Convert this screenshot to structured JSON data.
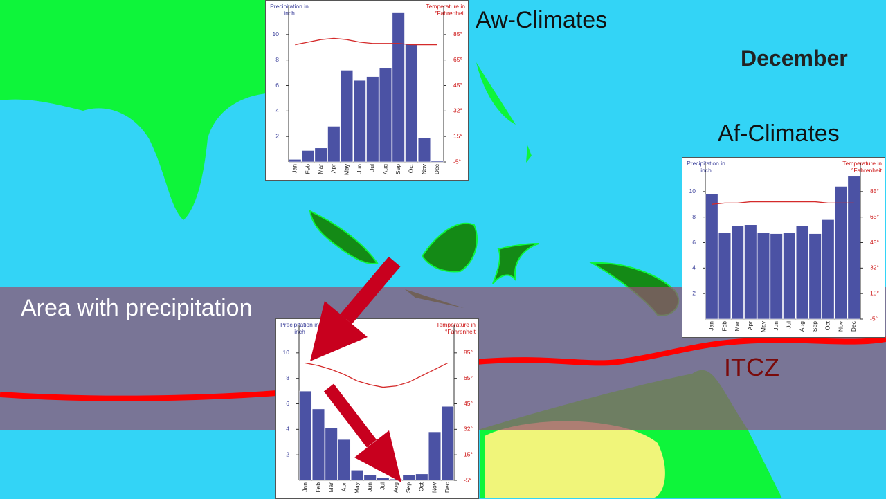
{
  "labels": {
    "aw": "Aw-Climates",
    "month": "December",
    "af": "Af-Climates",
    "band": "Area with precipitation",
    "itcz": "ITCZ"
  },
  "chart_data": [
    {
      "type": "bar",
      "y_label": "Precipitation in inch",
      "y2_label": "Temperature in °Fahrenheit",
      "categories": [
        "Jan",
        "Feb",
        "Mar",
        "Apr",
        "May",
        "Jun",
        "Jul",
        "Aug",
        "Sep",
        "Oct",
        "Nov",
        "Dec"
      ],
      "series": [
        {
          "color": "#4b52a4",
          "values": [
            0.2,
            0.9,
            1.1,
            2.8,
            7.2,
            6.4,
            6.7,
            7.4,
            11.7,
            9.3,
            1.9,
            0.1
          ]
        },
        {
          "color": "#d42a2a",
          "axis": "y2",
          "type": "line",
          "values": [
            77,
            79,
            81,
            82,
            81,
            79,
            78,
            78,
            78,
            77,
            77,
            77
          ]
        }
      ],
      "ylim": [
        0,
        12
      ],
      "yticks": [
        2,
        4,
        6,
        8,
        10
      ],
      "y2ticks": [
        {
          "value": -5,
          "label": "-5°"
        },
        {
          "value": 15,
          "label": "15°"
        },
        {
          "value": 32,
          "label": "32°"
        },
        {
          "value": 45,
          "label": "45°"
        },
        {
          "value": 65,
          "label": "65°"
        },
        {
          "value": 85,
          "label": "85°"
        }
      ]
    },
    {
      "type": "bar",
      "y_label": "Precipitation in inch",
      "y2_label": "Temperature in °Fahrenheit",
      "categories": [
        "Jan",
        "Feb",
        "Mar",
        "Apr",
        "May",
        "Jun",
        "Jul",
        "Aug",
        "Sep",
        "Oct",
        "Nov",
        "Dec"
      ],
      "series": [
        {
          "color": "#4b52a4",
          "values": [
            9.8,
            6.8,
            7.3,
            7.4,
            6.8,
            6.7,
            6.8,
            7.3,
            6.7,
            7.8,
            10.4,
            11.2
          ]
        },
        {
          "color": "#d42a2a",
          "axis": "y2",
          "type": "line",
          "values": [
            75,
            76,
            76,
            77,
            77,
            77,
            77,
            77,
            77,
            76,
            76,
            76
          ]
        }
      ],
      "ylim": [
        0,
        12
      ],
      "yticks": [
        2,
        4,
        6,
        8,
        10
      ],
      "y2ticks": [
        {
          "value": -5,
          "label": "-5°"
        },
        {
          "value": 15,
          "label": "15°"
        },
        {
          "value": 32,
          "label": "32°"
        },
        {
          "value": 45,
          "label": "45°"
        },
        {
          "value": 65,
          "label": "65°"
        },
        {
          "value": 85,
          "label": "85°"
        }
      ]
    },
    {
      "type": "bar",
      "y_label": "Precipitation in inch",
      "y2_label": "Temperature in °Fahrenheit",
      "categories": [
        "Jan",
        "Feb",
        "Mar",
        "Apr",
        "May",
        "Jun",
        "Jul",
        "Aug",
        "Sep",
        "Oct",
        "Nov",
        "Dec"
      ],
      "series": [
        {
          "color": "#4b52a4",
          "values": [
            7.0,
            5.6,
            4.1,
            3.2,
            0.8,
            0.4,
            0.2,
            0.1,
            0.4,
            0.5,
            3.8,
            5.8
          ]
        },
        {
          "color": "#d42a2a",
          "axis": "y2",
          "type": "line",
          "values": [
            77,
            75,
            72,
            68,
            63,
            60,
            58,
            59,
            62,
            67,
            72,
            77
          ]
        }
      ],
      "ylim": [
        0,
        12
      ],
      "yticks": [
        2,
        4,
        6,
        8,
        10
      ],
      "y2ticks": [
        {
          "value": -5,
          "label": "-5°"
        },
        {
          "value": 15,
          "label": "15°"
        },
        {
          "value": 32,
          "label": "32°"
        },
        {
          "value": 45,
          "label": "45°"
        },
        {
          "value": 65,
          "label": "65°"
        },
        {
          "value": 85,
          "label": "85°"
        }
      ]
    }
  ]
}
